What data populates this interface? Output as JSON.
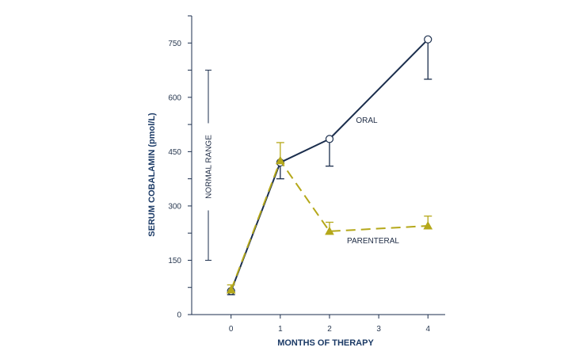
{
  "chart_data": {
    "type": "line",
    "xlabel": "MONTHS OF THERAPY",
    "ylabel": "SERUM COBALAMIN (pmol/L)",
    "x_ticks": [
      0,
      1,
      2,
      3,
      4
    ],
    "y_ticks": [
      0,
      150,
      300,
      450,
      600,
      750
    ],
    "xlim": [
      -0.8,
      4.35
    ],
    "ylim": [
      0,
      825
    ],
    "grid": false,
    "series": [
      {
        "name": "ORAL",
        "color": "#1b2e4d",
        "line_style": "solid",
        "marker": "open-circle",
        "x": [
          0,
          1,
          2,
          4
        ],
        "values": [
          65,
          420,
          485,
          760
        ],
        "error_low": [
          55,
          375,
          410,
          650
        ],
        "error_high": [
          65,
          420,
          485,
          760
        ]
      },
      {
        "name": "PARENTERAL",
        "color": "#b5a81a",
        "line_style": "dashed",
        "marker": "filled-triangle",
        "x": [
          0,
          1,
          2,
          4
        ],
        "values": [
          68,
          425,
          230,
          245
        ],
        "error_low": [
          68,
          425,
          230,
          245
        ],
        "error_high": [
          82,
          475,
          255,
          272
        ]
      }
    ],
    "annotations": {
      "normal_range": {
        "label": "NORMAL RANGE",
        "low": 150,
        "high": 675
      }
    }
  }
}
